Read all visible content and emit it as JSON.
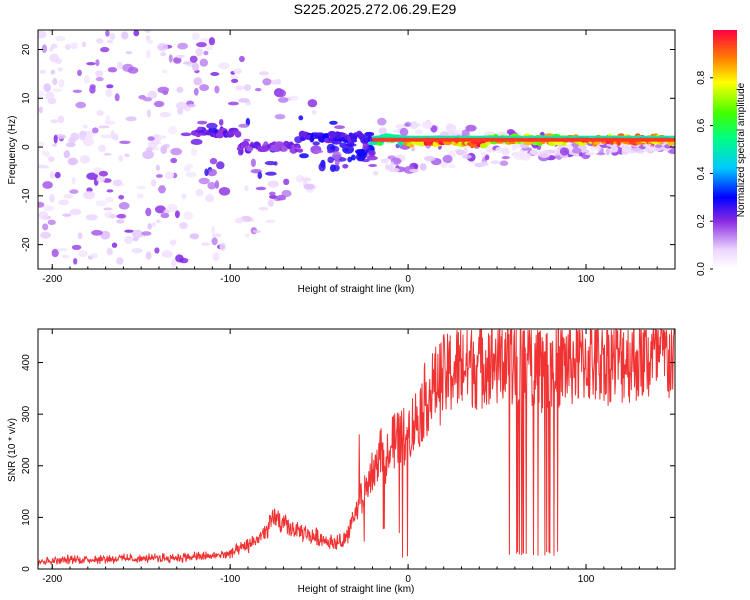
{
  "title": "S225.2025.272.06.29.E29",
  "chart_data": [
    {
      "type": "heatmap",
      "name": "spectrogram",
      "xlabel": "Height of straight line (km)",
      "ylabel": "Frequency (Hz)",
      "xlim": [
        -208,
        150
      ],
      "ylim": [
        -25,
        24
      ],
      "xticks": [
        -200,
        -100,
        0,
        100
      ],
      "yticks": [
        -20,
        -10,
        0,
        10,
        20
      ],
      "colorbar": {
        "label": "Normalized spectral amplitude",
        "ticks": [
          0.0,
          0.2,
          0.4,
          0.6,
          0.8
        ],
        "range": [
          0,
          1
        ]
      },
      "ridge": {
        "description": "narrow high-amplitude band near 1-2 Hz",
        "x_start": -20,
        "x_end": 150,
        "frequency_hz": 1.5,
        "segments": [
          {
            "x": [
              -120,
              -95
            ],
            "freq": 3,
            "amplitude": 0.25
          },
          {
            "x": [
              -95,
              -60
            ],
            "freq": 0,
            "amplitude": 0.22
          },
          {
            "x": [
              -60,
              -20
            ],
            "freq": 2,
            "amplitude": 0.28
          },
          {
            "x": [
              -20,
              0
            ],
            "freq": 1.5,
            "amplitude": 0.6
          },
          {
            "x": [
              0,
              45
            ],
            "freq": 1,
            "amplitude": 0.95
          },
          {
            "x": [
              45,
              90
            ],
            "freq": 1.5,
            "amplitude": 0.85
          },
          {
            "x": [
              90,
              150
            ],
            "freq": 1.5,
            "amplitude": 0.95
          }
        ]
      }
    },
    {
      "type": "line",
      "name": "snr",
      "xlabel": "Height of straight line (km)",
      "ylabel": "SNR (10 * v/v)",
      "xlim": [
        -208,
        150
      ],
      "ylim": [
        0,
        465
      ],
      "xticks": [
        -200,
        -100,
        0,
        100
      ],
      "yticks": [
        0,
        100,
        200,
        300,
        400
      ],
      "color": "#f03232",
      "series": [
        {
          "name": "SNR",
          "x": [
            -208,
            -190,
            -170,
            -150,
            -130,
            -110,
            -100,
            -90,
            -80,
            -75,
            -70,
            -60,
            -50,
            -40,
            -35,
            -30,
            -25,
            -20,
            -15,
            -10,
            -5,
            0,
            5,
            10,
            15,
            20,
            25,
            30,
            40,
            50,
            60,
            70,
            80,
            90,
            100,
            110,
            120,
            130,
            140,
            150
          ],
          "values": [
            15,
            18,
            20,
            20,
            22,
            25,
            30,
            45,
            70,
            100,
            85,
            70,
            60,
            50,
            60,
            100,
            150,
            190,
            225,
            250,
            255,
            265,
            290,
            330,
            355,
            370,
            385,
            395,
            400,
            405,
            405,
            400,
            395,
            400,
            405,
            410,
            410,
            410,
            412,
            410
          ]
        }
      ],
      "dropouts": {
        "x_range": [
          55,
          85
        ],
        "min_value": 25
      }
    }
  ]
}
